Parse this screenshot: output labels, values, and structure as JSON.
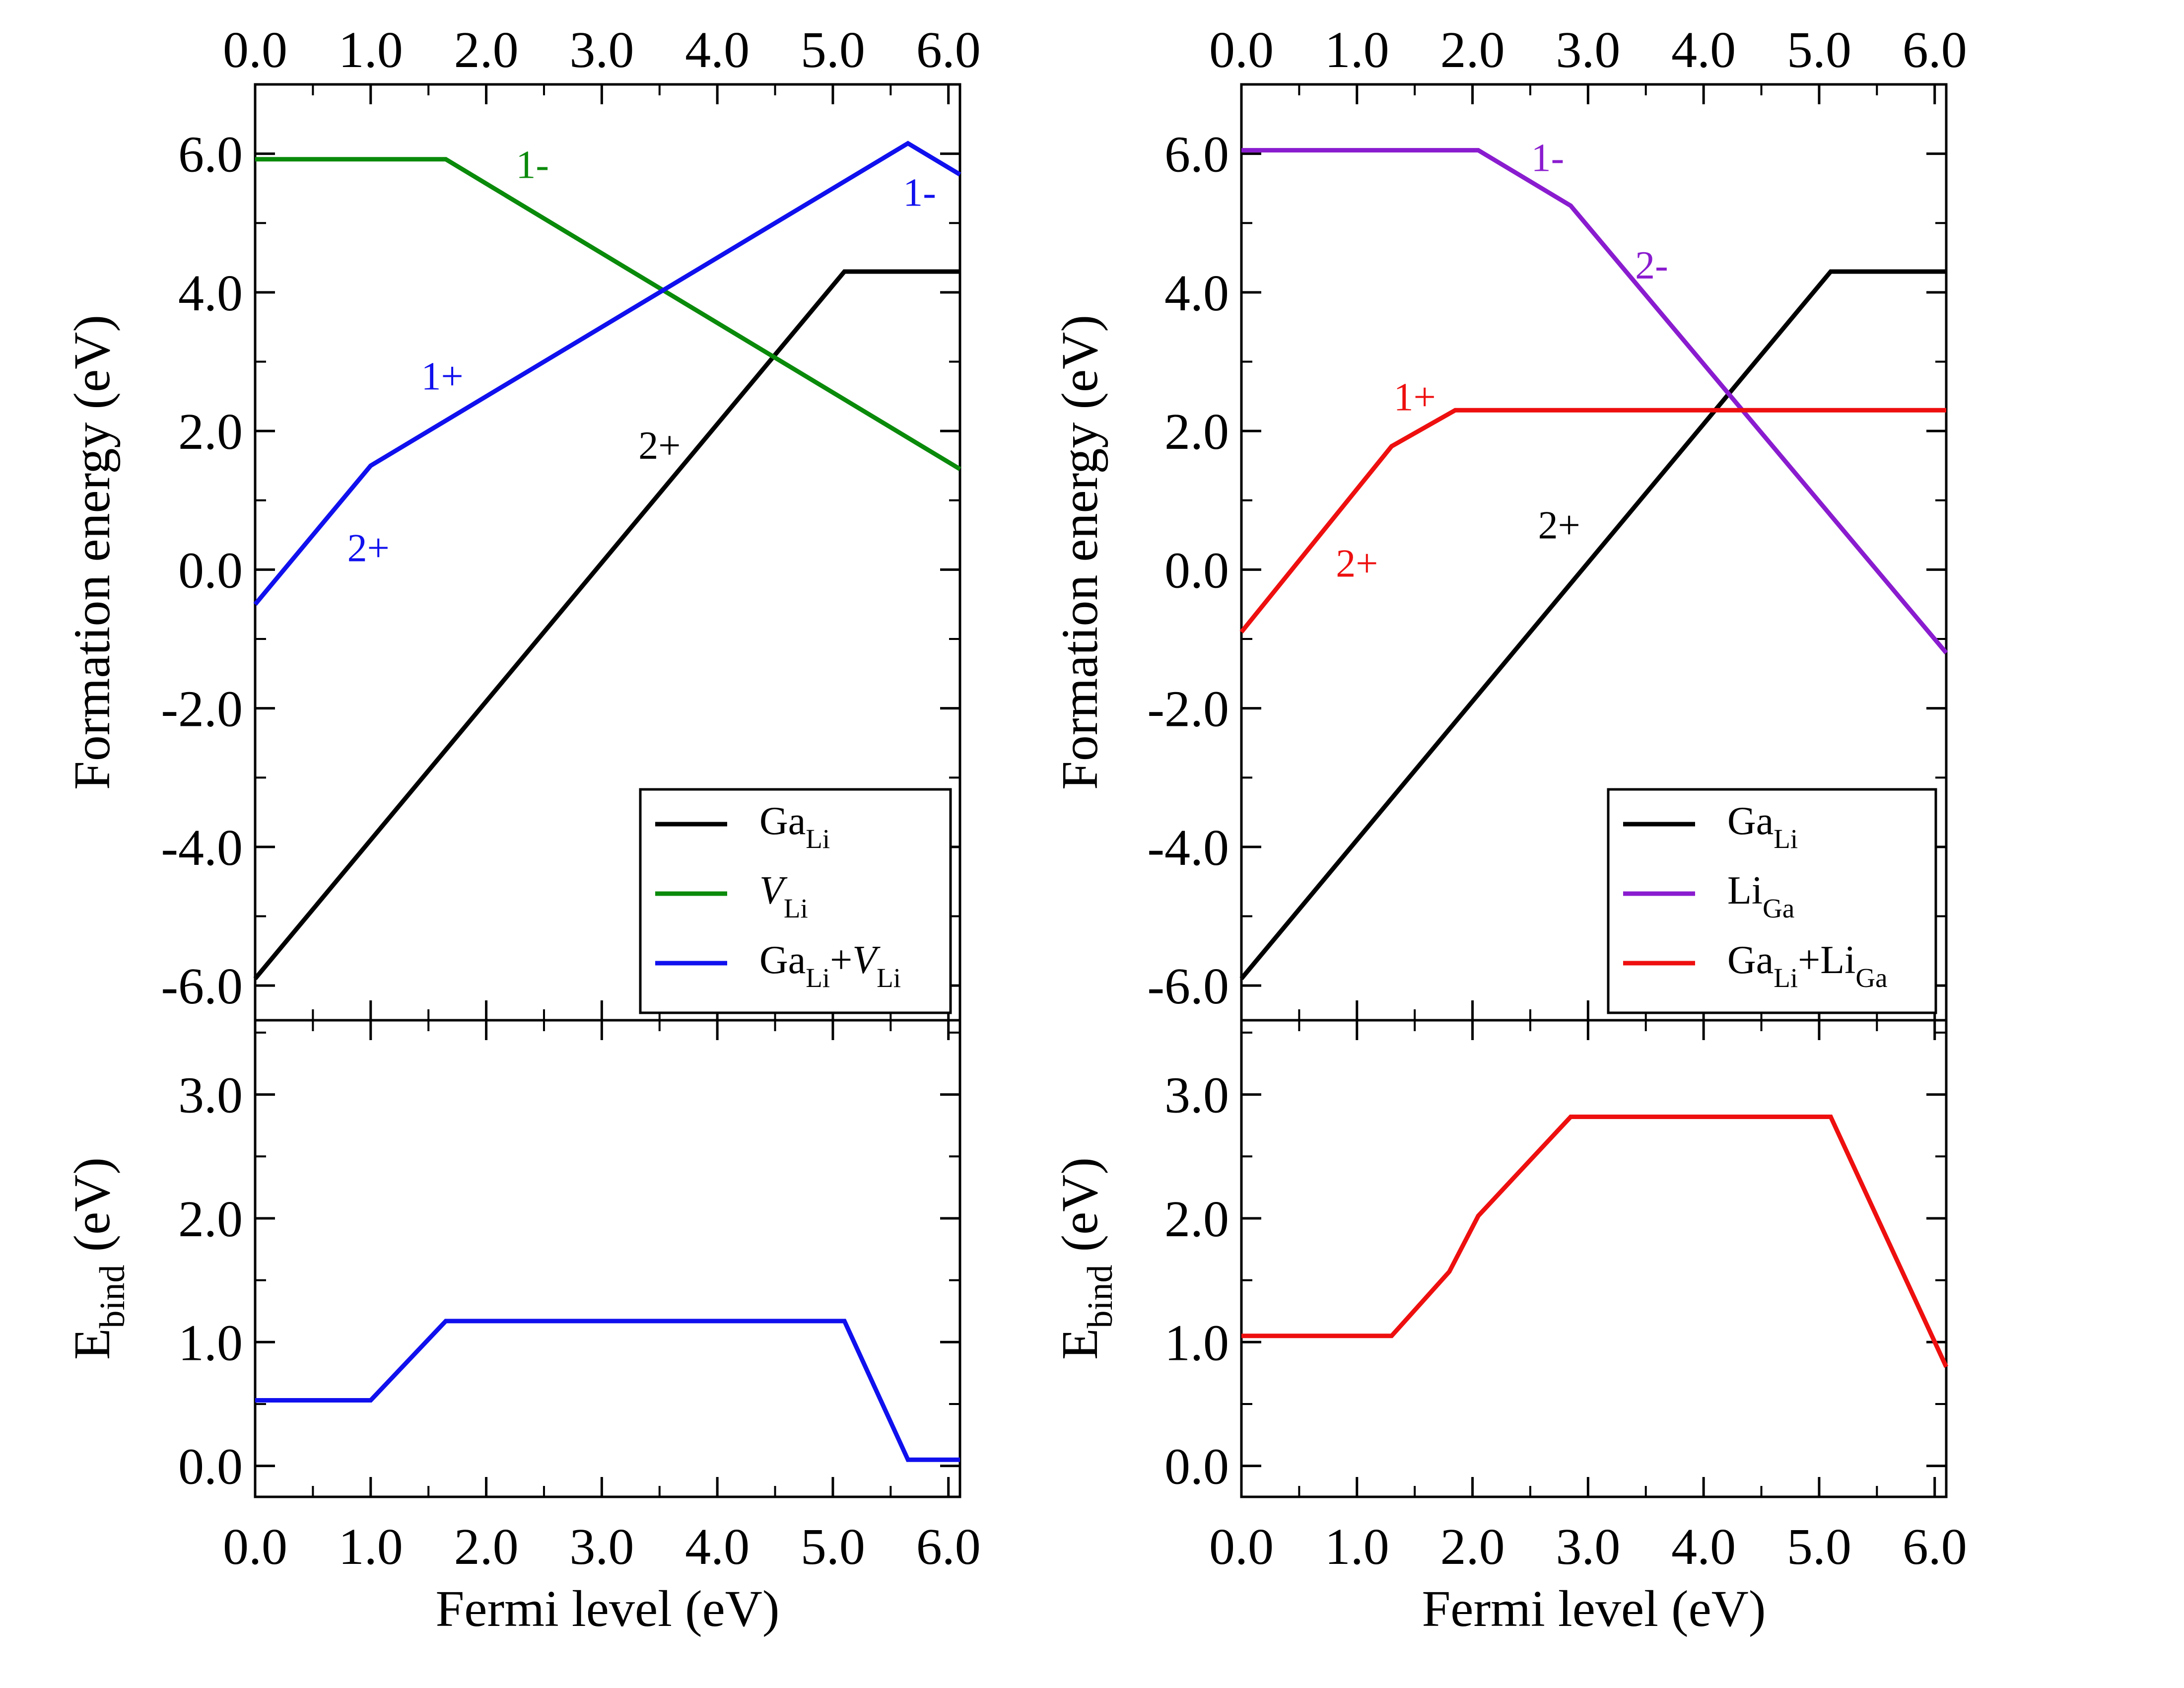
{
  "colors": {
    "black": "#000000",
    "green": "#0a8a0a",
    "blue": "#1010ee",
    "purple": "#8a1ccf",
    "red": "#ee0f0f"
  },
  "chart_data": [
    {
      "panel": "left",
      "type": "line",
      "top": {
        "xlabel": "",
        "ylabel": "Formation energy (eV)",
        "xlim": [
          0,
          6.1
        ],
        "ylim": [
          -6.5,
          7.0
        ],
        "xticks": [
          "0.0",
          "1.0",
          "2.0",
          "3.0",
          "4.0",
          "5.0",
          "6.0"
        ],
        "yticks": [
          "-6.0",
          "-4.0",
          "-2.0",
          "0.0",
          "2.0",
          "4.0",
          "6.0"
        ],
        "series": [
          {
            "name": "Ga_Li",
            "color": "black",
            "x": [
              0,
              5.1,
              6.1
            ],
            "y": [
              -5.9,
              4.3,
              4.3
            ]
          },
          {
            "name": "V_Li",
            "color": "green",
            "x": [
              0,
              1.65,
              6.1
            ],
            "y": [
              5.92,
              5.92,
              1.45
            ]
          },
          {
            "name": "Ga_Li+V_Li",
            "color": "blue",
            "x": [
              0,
              1.0,
              5.65,
              6.1
            ],
            "y": [
              -0.5,
              1.5,
              6.15,
              5.7
            ]
          }
        ],
        "annotations": [
          {
            "text": "1-",
            "x": 2.4,
            "y": 5.65,
            "color": "green"
          },
          {
            "text": "1-",
            "x": 5.75,
            "y": 5.25,
            "color": "blue"
          },
          {
            "text": "1+",
            "x": 1.62,
            "y": 2.6,
            "color": "blue"
          },
          {
            "text": "2+",
            "x": 3.5,
            "y": 1.6,
            "color": "black"
          },
          {
            "text": "2+",
            "x": 0.98,
            "y": 0.12,
            "color": "blue"
          }
        ],
        "legend": [
          {
            "color": "black",
            "parts": [
              {
                "t": "Ga"
              },
              {
                "t": "Li",
                "sub": true
              }
            ]
          },
          {
            "color": "green",
            "parts": [
              {
                "t": "V",
                "italic": true
              },
              {
                "t": "Li",
                "sub": true
              }
            ]
          },
          {
            "color": "blue",
            "parts": [
              {
                "t": "Ga"
              },
              {
                "t": "Li",
                "sub": true
              },
              {
                "t": "+"
              },
              {
                "t": "V",
                "italic": true
              },
              {
                "t": "Li",
                "sub": true
              }
            ]
          }
        ]
      },
      "bottom": {
        "xlabel": "Fermi level (eV)",
        "ylabel_main": "E",
        "ylabel_sub": "bind",
        "ylabel_tail": " (eV)",
        "xlim": [
          0,
          6.1
        ],
        "ylim": [
          -0.25,
          3.6
        ],
        "xticks": [
          "0.0",
          "1.0",
          "2.0",
          "3.0",
          "4.0",
          "5.0",
          "6.0"
        ],
        "yticks": [
          "0.0",
          "1.0",
          "2.0",
          "3.0"
        ],
        "series": [
          {
            "name": "E_bind",
            "color": "blue",
            "x": [
              0,
              1.0,
              1.65,
              5.1,
              5.65,
              6.1
            ],
            "y": [
              0.53,
              0.53,
              1.17,
              1.17,
              0.05,
              0.05
            ]
          }
        ]
      },
      "legend_labels": [
        "Ga",
        "Li",
        "V",
        "Li",
        "Ga",
        "Li",
        "+",
        "V",
        "Li"
      ]
    },
    {
      "panel": "right",
      "type": "line",
      "top": {
        "xlabel": "",
        "ylabel": "Formation energy (eV)",
        "xlim": [
          0,
          6.1
        ],
        "ylim": [
          -6.5,
          7.0
        ],
        "xticks": [
          "0.0",
          "1.0",
          "2.0",
          "3.0",
          "4.0",
          "5.0",
          "6.0"
        ],
        "yticks": [
          "-6.0",
          "-4.0",
          "-2.0",
          "0.0",
          "2.0",
          "4.0",
          "6.0"
        ],
        "series": [
          {
            "name": "Ga_Li",
            "color": "black",
            "x": [
              0,
              5.1,
              6.1
            ],
            "y": [
              -5.9,
              4.3,
              4.3
            ]
          },
          {
            "name": "Li_Ga",
            "color": "purple",
            "x": [
              0,
              2.05,
              2.85,
              6.1
            ],
            "y": [
              6.05,
              6.05,
              5.25,
              -1.2
            ]
          },
          {
            "name": "Ga_Li+Li_Ga",
            "color": "red",
            "x": [
              0,
              1.3,
              1.85,
              6.1
            ],
            "y": [
              -0.9,
              1.78,
              2.3,
              2.3
            ]
          }
        ],
        "annotations": [
          {
            "text": "1-",
            "x": 2.65,
            "y": 5.75,
            "color": "purple"
          },
          {
            "text": "2-",
            "x": 3.55,
            "y": 4.2,
            "color": "purple"
          },
          {
            "text": "1+",
            "x": 1.5,
            "y": 2.3,
            "color": "red"
          },
          {
            "text": "2+",
            "x": 1.0,
            "y": -0.1,
            "color": "red"
          },
          {
            "text": "2+",
            "x": 2.75,
            "y": 0.45,
            "color": "black"
          }
        ],
        "legend": [
          {
            "color": "black",
            "parts": [
              {
                "t": "Ga"
              },
              {
                "t": "Li",
                "sub": true
              }
            ]
          },
          {
            "color": "purple",
            "parts": [
              {
                "t": "Li"
              },
              {
                "t": "Ga",
                "sub": true
              }
            ]
          },
          {
            "color": "red",
            "parts": [
              {
                "t": "Ga"
              },
              {
                "t": "Li",
                "sub": true
              },
              {
                "t": "+"
              },
              {
                "t": "Li"
              },
              {
                "t": "Ga",
                "sub": true
              }
            ]
          }
        ]
      },
      "bottom": {
        "xlabel": "Fermi level (eV)",
        "ylabel_main": "E",
        "ylabel_sub": "bind",
        "ylabel_tail": " (eV)",
        "xlim": [
          0,
          6.1
        ],
        "ylim": [
          -0.25,
          3.6
        ],
        "xticks": [
          "0.0",
          "1.0",
          "2.0",
          "3.0",
          "4.0",
          "5.0",
          "6.0"
        ],
        "yticks": [
          "0.0",
          "1.0",
          "2.0",
          "3.0"
        ],
        "series": [
          {
            "name": "E_bind",
            "color": "red",
            "x": [
              0,
              1.3,
              1.8,
              2.05,
              2.85,
              5.1,
              6.1
            ],
            "y": [
              1.05,
              1.05,
              1.57,
              2.02,
              2.82,
              2.82,
              0.8
            ]
          }
        ]
      },
      "legend_labels": [
        "Ga",
        "Li",
        "Li",
        "Ga",
        "Ga",
        "Li",
        "+",
        "Li",
        "Ga"
      ]
    }
  ]
}
